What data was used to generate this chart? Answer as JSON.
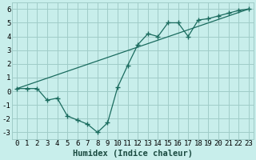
{
  "xlabel": "Humidex (Indice chaleur)",
  "bg_color": "#c8eeeb",
  "grid_color": "#a0ccc8",
  "line_color": "#1a6b5e",
  "xlim": [
    -0.5,
    23.5
  ],
  "ylim": [
    -3.5,
    6.5
  ],
  "xticks": [
    0,
    1,
    2,
    3,
    4,
    5,
    6,
    7,
    8,
    9,
    10,
    11,
    12,
    13,
    14,
    15,
    16,
    17,
    18,
    19,
    20,
    21,
    22,
    23
  ],
  "yticks": [
    -3,
    -2,
    -1,
    0,
    1,
    2,
    3,
    4,
    5,
    6
  ],
  "scatter_x": [
    0,
    1,
    2,
    3,
    4,
    5,
    6,
    7,
    8,
    9,
    10,
    11,
    12,
    13,
    14,
    15,
    16,
    17,
    18,
    19,
    20,
    21,
    22,
    23
  ],
  "scatter_y": [
    0.2,
    0.2,
    0.2,
    -0.65,
    -0.5,
    -1.8,
    -2.1,
    -2.4,
    -3.0,
    -2.3,
    0.3,
    1.9,
    3.4,
    4.2,
    4.0,
    5.0,
    5.0,
    4.0,
    5.2,
    5.3,
    5.5,
    5.7,
    5.9,
    6.0
  ],
  "trend_x": [
    0,
    23
  ],
  "trend_y": [
    0.2,
    6.0
  ],
  "tick_fontsize": 6.5,
  "label_fontsize": 7.5
}
